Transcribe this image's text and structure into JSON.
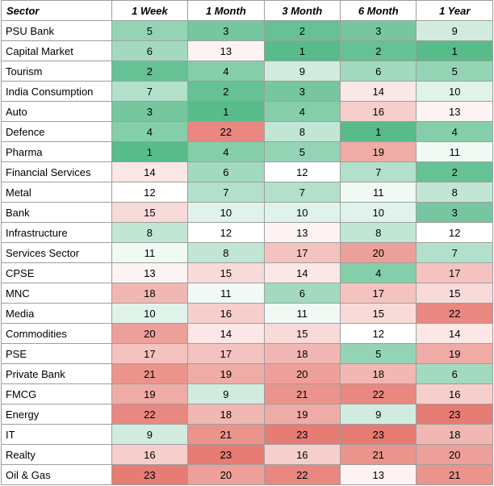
{
  "chart_data": {
    "type": "heatmap",
    "title": "",
    "header_first": "Sector",
    "columns": [
      "1 Week",
      "1 Month",
      "3 Month",
      "6 Month",
      "1 Year"
    ],
    "color_scale": {
      "min": 1,
      "mid": 12,
      "max": 23,
      "low_color": "#57bb8a",
      "mid_color": "#ffffff",
      "high_color": "#e67c73"
    },
    "rows": [
      {
        "sector": "PSU Bank",
        "values": [
          5,
          3,
          2,
          3,
          9
        ]
      },
      {
        "sector": "Capital Market",
        "values": [
          6,
          13,
          1,
          2,
          1
        ]
      },
      {
        "sector": "Tourism",
        "values": [
          2,
          4,
          9,
          6,
          5
        ]
      },
      {
        "sector": "India Consumption",
        "values": [
          7,
          2,
          3,
          14,
          10
        ]
      },
      {
        "sector": "Auto",
        "values": [
          3,
          1,
          4,
          16,
          13
        ]
      },
      {
        "sector": "Defence",
        "values": [
          4,
          22,
          8,
          1,
          4
        ]
      },
      {
        "sector": "Pharma",
        "values": [
          1,
          4,
          5,
          19,
          11
        ]
      },
      {
        "sector": "Financial Services",
        "values": [
          14,
          6,
          12,
          7,
          2
        ]
      },
      {
        "sector": "Metal",
        "values": [
          12,
          7,
          7,
          11,
          8
        ]
      },
      {
        "sector": "Bank",
        "values": [
          15,
          10,
          10,
          10,
          3
        ]
      },
      {
        "sector": "Infrastructure",
        "values": [
          8,
          12,
          13,
          8,
          12
        ]
      },
      {
        "sector": "Services Sector",
        "values": [
          11,
          8,
          17,
          20,
          7
        ]
      },
      {
        "sector": "CPSE",
        "values": [
          13,
          15,
          14,
          4,
          17
        ]
      },
      {
        "sector": "MNC",
        "values": [
          18,
          11,
          6,
          17,
          15
        ]
      },
      {
        "sector": "Media",
        "values": [
          10,
          16,
          11,
          15,
          22
        ]
      },
      {
        "sector": "Commodities",
        "values": [
          20,
          14,
          15,
          12,
          14
        ]
      },
      {
        "sector": "PSE",
        "values": [
          17,
          17,
          18,
          5,
          19
        ]
      },
      {
        "sector": "Private Bank",
        "values": [
          21,
          19,
          20,
          18,
          6
        ]
      },
      {
        "sector": "FMCG",
        "values": [
          19,
          9,
          21,
          22,
          16
        ]
      },
      {
        "sector": "Energy",
        "values": [
          22,
          18,
          19,
          9,
          23
        ]
      },
      {
        "sector": "IT",
        "values": [
          9,
          21,
          23,
          23,
          18
        ]
      },
      {
        "sector": "Realty",
        "values": [
          16,
          23,
          16,
          21,
          20
        ]
      },
      {
        "sector": "Oil & Gas",
        "values": [
          23,
          20,
          22,
          13,
          21
        ]
      }
    ]
  }
}
